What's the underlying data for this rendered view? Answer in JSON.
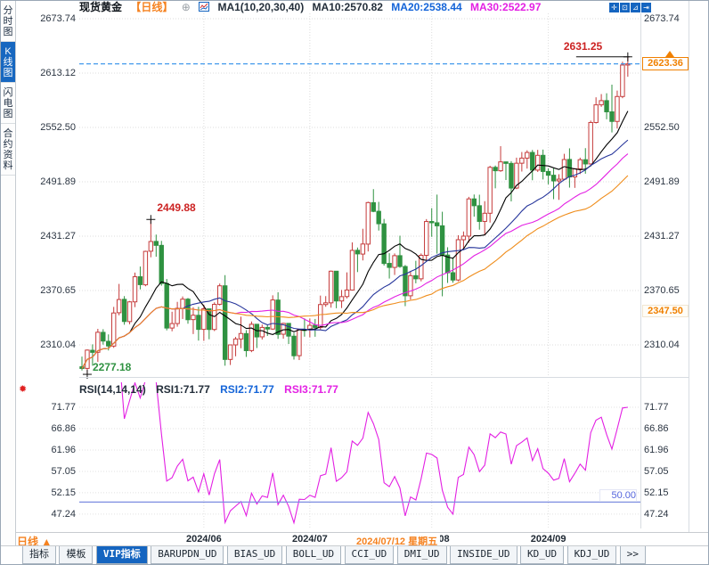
{
  "header": {
    "symbol": "现货黄金",
    "period_tag": "【日线】",
    "plus_icon": "⊕",
    "ma_title": "MA1(10,20,30,40)",
    "ma10_label": "MA10:2570.82",
    "ma20_label": "MA20:2538.44",
    "ma30_label": "MA30:2522.97"
  },
  "toolbar_icons": [
    {
      "name": "crosshair-pan",
      "glyph": "✛"
    },
    {
      "name": "axis-scale",
      "glyph": "⊡"
    },
    {
      "name": "chart-shift",
      "glyph": "⊿"
    },
    {
      "name": "collapse-right",
      "glyph": "⇥"
    }
  ],
  "sidebar": {
    "items": [
      {
        "label": "分时图",
        "selected": false
      },
      {
        "label": "K线图",
        "selected": true
      },
      {
        "label": "闪电图",
        "selected": false
      },
      {
        "label": "合约资料",
        "selected": false
      }
    ]
  },
  "main_chart": {
    "left_axis_labels": [
      "2673.74",
      "2613.12",
      "2552.50",
      "2491.89",
      "2431.27",
      "2370.65",
      "2310.04"
    ],
    "right_axis_labels": [
      "2673.74",
      "2552.50",
      "2491.89",
      "2431.27",
      "2370.65",
      "2310.04"
    ],
    "current_price_label": "2623.36",
    "support_label": "2347.50"
  },
  "rsi_panel": {
    "title": "RSI(14,14,14)",
    "rsi1_label": "RSI1:71.77",
    "rsi2_label": "RSI2:71.77",
    "rsi3_label": "RSI3:71.77",
    "axis_labels": [
      "71.77",
      "66.86",
      "61.96",
      "57.05",
      "52.15",
      "47.24"
    ],
    "mid_label": "50.00",
    "alarm_icon": "✹"
  },
  "x_axis": {
    "period_button": "日线 ▲",
    "crosshair_date": "2024/07/12 星期五"
  },
  "bottom_tabs": {
    "items": [
      "指标",
      "模板",
      "VIP指标",
      "BARUPDN_UD",
      "BIAS_UD",
      "BOLL_UD",
      "CCI_UD",
      "DMI_UD",
      "INSIDE_UD",
      "KD_UD",
      "KDJ_UD",
      ">>"
    ],
    "selected": "VIP指标"
  },
  "chart_data": {
    "type": "candlestick",
    "symbol": "现货黄金",
    "period": "日线",
    "price_axis": {
      "ticks": [
        2673.74,
        2613.12,
        2552.5,
        2491.89,
        2431.27,
        2370.65,
        2310.04
      ],
      "current_price": 2623.36,
      "support_level": 2347.5
    },
    "months": [
      {
        "index": 23,
        "label": "2024/06"
      },
      {
        "index": 43,
        "label": "2024/07"
      },
      {
        "index": 66,
        "label": "2024/08"
      },
      {
        "index": 88,
        "label": "2024/09"
      }
    ],
    "ma_periods": [
      10,
      20,
      30,
      40
    ],
    "ma_displayed": {
      "ma10": 2570.82,
      "ma20": 2538.44,
      "ma30": 2522.97
    },
    "ma_colors": [
      "#000000",
      "#26359b",
      "#e320e3",
      "#ef8c1a"
    ],
    "up_color": "#c53b3b",
    "down_color": "#2f9241",
    "current_line_color": "#2e8fea",
    "annotations": [
      {
        "kind": "high",
        "text": "2631.25",
        "index": 103,
        "price": 2631.25,
        "color": "#cc2222"
      },
      {
        "kind": "peak",
        "text": "2449.88",
        "index": 13,
        "price": 2449.88,
        "color": "#cc2222"
      },
      {
        "kind": "low",
        "text": "2277.18",
        "index": 1,
        "price": 2277.18,
        "color": "#2f9241"
      }
    ],
    "rsi": {
      "period": 14,
      "last": 71.77,
      "mid_line": 50,
      "axis_ticks": [
        71.77,
        66.86,
        61.96,
        57.05,
        52.15,
        47.24
      ],
      "line_color": "#e320e3",
      "mid_color": "#7b8ce0"
    },
    "ohlc": [
      [
        2285.6,
        2297.0,
        2281.4,
        2283.7
      ],
      [
        2283.8,
        2304.9,
        2277.2,
        2304.2
      ],
      [
        2304.0,
        2310.6,
        2286.8,
        2301.7
      ],
      [
        2301.8,
        2327.9,
        2291.0,
        2324.1
      ],
      [
        2324.0,
        2327.5,
        2310.3,
        2314.3
      ],
      [
        2314.0,
        2321.7,
        2303.8,
        2308.8
      ],
      [
        2308.7,
        2352.4,
        2306.7,
        2345.6
      ],
      [
        2345.9,
        2378.0,
        2343.0,
        2360.6
      ],
      [
        2360.8,
        2364.4,
        2332.5,
        2336.1
      ],
      [
        2336.0,
        2359.0,
        2333.0,
        2358.0
      ],
      [
        2358.0,
        2390.6,
        2352.1,
        2386.0
      ],
      [
        2386.0,
        2397.4,
        2371.9,
        2377.2
      ],
      [
        2377.0,
        2415.0,
        2375.4,
        2414.3
      ],
      [
        2414.5,
        2449.88,
        2407.7,
        2425.3
      ],
      [
        2425.4,
        2433.0,
        2408.3,
        2421.0
      ],
      [
        2421.0,
        2426.0,
        2376.0,
        2378.5
      ],
      [
        2378.5,
        2383.5,
        2326.2,
        2328.8
      ],
      [
        2328.8,
        2347.0,
        2325.2,
        2333.8
      ],
      [
        2333.8,
        2358.0,
        2330.3,
        2350.8
      ],
      [
        2350.8,
        2364.0,
        2338.9,
        2361.0
      ],
      [
        2361.0,
        2362.3,
        2333.6,
        2338.1
      ],
      [
        2338.2,
        2352.0,
        2322.1,
        2343.1
      ],
      [
        2343.0,
        2352.5,
        2314.8,
        2327.3
      ],
      [
        2327.3,
        2354.9,
        2314.5,
        2350.3
      ],
      [
        2350.2,
        2350.6,
        2316.3,
        2327.2
      ],
      [
        2327.2,
        2357.5,
        2325.4,
        2355.2
      ],
      [
        2355.3,
        2378.4,
        2354.0,
        2375.9
      ],
      [
        2375.9,
        2387.8,
        2286.8,
        2293.8
      ],
      [
        2293.8,
        2310.5,
        2287.6,
        2310.0
      ],
      [
        2310.0,
        2318.9,
        2297.3,
        2316.6
      ],
      [
        2316.6,
        2341.5,
        2306.3,
        2322.7
      ],
      [
        2322.6,
        2326.5,
        2296.6,
        2303.6
      ],
      [
        2303.7,
        2336.1,
        2301.9,
        2333.0
      ],
      [
        2333.0,
        2333.1,
        2306.5,
        2318.9
      ],
      [
        2319.0,
        2332.7,
        2316.0,
        2329.5
      ],
      [
        2329.5,
        2332.0,
        2320.0,
        2327.7
      ],
      [
        2327.7,
        2365.3,
        2326.7,
        2360.1
      ],
      [
        2360.0,
        2368.7,
        2316.7,
        2321.7
      ],
      [
        2321.9,
        2334.6,
        2316.9,
        2334.0
      ],
      [
        2334.0,
        2334.3,
        2311.0,
        2319.8
      ],
      [
        2319.7,
        2323.4,
        2293.6,
        2297.9
      ],
      [
        2298.0,
        2327.3,
        2293.1,
        2327.0
      ],
      [
        2327.0,
        2339.6,
        2319.2,
        2326.7
      ],
      [
        2326.7,
        2339.4,
        2318.5,
        2331.8
      ],
      [
        2331.9,
        2338.9,
        2319.1,
        2329.5
      ],
      [
        2329.5,
        2365.0,
        2327.2,
        2355.0
      ],
      [
        2355.0,
        2364.4,
        2352.5,
        2356.9
      ],
      [
        2356.9,
        2393.0,
        2351.5,
        2392.2
      ],
      [
        2392.2,
        2392.5,
        2350.9,
        2359.0
      ],
      [
        2359.0,
        2371.3,
        2351.1,
        2363.8
      ],
      [
        2363.9,
        2390.9,
        2361.8,
        2371.2
      ],
      [
        2371.2,
        2424.3,
        2370.7,
        2415.4
      ],
      [
        2415.5,
        2418.6,
        2391.2,
        2411.5
      ],
      [
        2411.3,
        2439.5,
        2404.2,
        2422.5
      ],
      [
        2422.4,
        2469.7,
        2414.2,
        2468.7
      ],
      [
        2468.6,
        2483.7,
        2458.0,
        2458.9
      ],
      [
        2459.0,
        2469.5,
        2437.5,
        2445.1
      ],
      [
        2445.0,
        2450.5,
        2398.5,
        2400.8
      ],
      [
        2400.9,
        2412.3,
        2384.0,
        2396.4
      ],
      [
        2396.4,
        2412.0,
        2388.0,
        2409.5
      ],
      [
        2409.5,
        2431.8,
        2396.0,
        2397.4
      ],
      [
        2397.4,
        2399.1,
        2353.2,
        2364.8
      ],
      [
        2364.8,
        2392.1,
        2360.5,
        2387.2
      ],
      [
        2387.2,
        2403.8,
        2378.7,
        2383.7
      ],
      [
        2383.7,
        2412.0,
        2380.9,
        2409.9
      ],
      [
        2409.9,
        2450.3,
        2404.7,
        2447.6
      ],
      [
        2447.6,
        2462.5,
        2430.5,
        2446.2
      ],
      [
        2446.2,
        2477.6,
        2411.8,
        2442.8
      ],
      [
        2442.8,
        2458.5,
        2364.2,
        2410.2
      ],
      [
        2410.2,
        2418.9,
        2379.1,
        2390.5
      ],
      [
        2390.5,
        2407.6,
        2379.3,
        2382.3
      ],
      [
        2382.4,
        2432.3,
        2380.9,
        2427.3
      ],
      [
        2427.3,
        2436.5,
        2417.1,
        2431.3
      ],
      [
        2431.3,
        2475.1,
        2424.0,
        2472.8
      ],
      [
        2472.8,
        2477.7,
        2453.0,
        2465.2
      ],
      [
        2465.2,
        2477.5,
        2438.5,
        2447.7
      ],
      [
        2447.7,
        2470.3,
        2432.1,
        2456.8
      ],
      [
        2456.8,
        2509.7,
        2446.4,
        2508.0
      ],
      [
        2508.0,
        2510.0,
        2484.6,
        2504.2
      ],
      [
        2504.2,
        2531.6,
        2503.0,
        2514.1
      ],
      [
        2514.1,
        2514.2,
        2493.9,
        2512.4
      ],
      [
        2512.4,
        2514.9,
        2470.0,
        2484.9
      ],
      [
        2484.9,
        2518.8,
        2483.7,
        2512.6
      ],
      [
        2512.6,
        2525.1,
        2503.3,
        2518.3
      ],
      [
        2518.3,
        2527.0,
        2506.6,
        2524.6
      ],
      [
        2524.6,
        2527.4,
        2493.6,
        2504.9
      ],
      [
        2504.9,
        2527.5,
        2502.9,
        2521.4
      ],
      [
        2521.4,
        2527.8,
        2494.5,
        2503.4
      ],
      [
        2503.4,
        2506.9,
        2489.0,
        2499.2
      ],
      [
        2499.2,
        2506.9,
        2472.5,
        2492.9
      ],
      [
        2492.9,
        2500.3,
        2471.7,
        2494.8
      ],
      [
        2494.8,
        2523.1,
        2493.5,
        2516.7
      ],
      [
        2516.8,
        2529.2,
        2485.4,
        2497.3
      ],
      [
        2497.3,
        2507.0,
        2485.1,
        2506.4
      ],
      [
        2506.4,
        2518.8,
        2500.5,
        2516.5
      ],
      [
        2516.5,
        2529.4,
        2500.9,
        2511.8
      ],
      [
        2511.8,
        2560.1,
        2511.0,
        2558.0
      ],
      [
        2558.0,
        2586.1,
        2556.9,
        2577.7
      ],
      [
        2577.7,
        2589.7,
        2575.5,
        2582.4
      ],
      [
        2582.4,
        2590.6,
        2561.6,
        2569.9
      ],
      [
        2569.9,
        2600.2,
        2546.9,
        2559.2
      ],
      [
        2559.2,
        2593.6,
        2551.3,
        2587.0
      ],
      [
        2587.0,
        2625.8,
        2585.1,
        2622.1
      ],
      [
        2622.1,
        2631.25,
        2609.0,
        2623.36
      ]
    ]
  }
}
